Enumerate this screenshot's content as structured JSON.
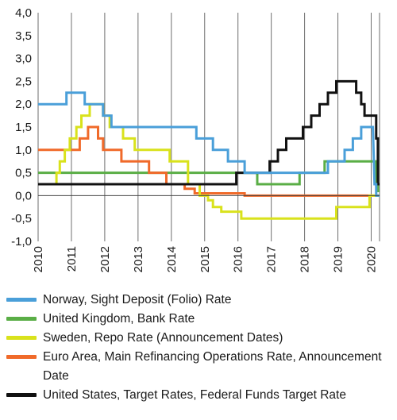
{
  "chart_data": {
    "type": "line",
    "step": true,
    "xlabel": "",
    "ylabel": "",
    "xlim": [
      2010.0,
      2020.25
    ],
    "ylim": [
      -1.0,
      4.0
    ],
    "x_ticks": [
      "2010",
      "2011",
      "2012",
      "2013",
      "2014",
      "2015",
      "2016",
      "2017",
      "2018",
      "2019",
      "2020"
    ],
    "y_ticks": [
      "-1,0",
      "-0,5",
      "0,0",
      "0,5",
      "1,0",
      "1,5",
      "2,0",
      "2,5",
      "3,0",
      "3,5",
      "4,0"
    ],
    "grid": "vertical",
    "legend_position": "bottom",
    "series": [
      {
        "name": "Norway, Sight Deposit (Folio) Rate",
        "color": "#4a9fd9",
        "points": [
          [
            2010.0,
            2.0
          ],
          [
            2010.85,
            2.0
          ],
          [
            2010.85,
            2.25
          ],
          [
            2011.4,
            2.25
          ],
          [
            2011.4,
            2.0
          ],
          [
            2011.95,
            2.0
          ],
          [
            2011.95,
            1.75
          ],
          [
            2012.2,
            1.75
          ],
          [
            2012.2,
            1.5
          ],
          [
            2014.75,
            1.5
          ],
          [
            2014.75,
            1.25
          ],
          [
            2015.25,
            1.25
          ],
          [
            2015.25,
            1.0
          ],
          [
            2015.7,
            1.0
          ],
          [
            2015.7,
            0.75
          ],
          [
            2016.2,
            0.75
          ],
          [
            2016.2,
            0.5
          ],
          [
            2018.7,
            0.5
          ],
          [
            2018.7,
            0.75
          ],
          [
            2019.2,
            0.75
          ],
          [
            2019.2,
            1.0
          ],
          [
            2019.45,
            1.0
          ],
          [
            2019.45,
            1.25
          ],
          [
            2019.7,
            1.25
          ],
          [
            2019.7,
            1.5
          ],
          [
            2020.05,
            1.5
          ],
          [
            2020.1,
            0.25
          ],
          [
            2020.15,
            0.25
          ],
          [
            2020.15,
            0.0
          ],
          [
            2020.25,
            0.0
          ]
        ]
      },
      {
        "name": "United Kingdom, Bank Rate",
        "color": "#5aae46",
        "points": [
          [
            2010.0,
            0.5
          ],
          [
            2016.58,
            0.5
          ],
          [
            2016.58,
            0.25
          ],
          [
            2017.85,
            0.25
          ],
          [
            2017.85,
            0.5
          ],
          [
            2018.6,
            0.5
          ],
          [
            2018.6,
            0.75
          ],
          [
            2020.15,
            0.75
          ],
          [
            2020.15,
            0.25
          ],
          [
            2020.2,
            0.25
          ],
          [
            2020.2,
            0.1
          ],
          [
            2020.25,
            0.1
          ]
        ]
      },
      {
        "name": "Sweden, Repo Rate (Announcement Dates)",
        "color": "#d9e21c",
        "points": [
          [
            2010.0,
            0.25
          ],
          [
            2010.55,
            0.25
          ],
          [
            2010.55,
            0.5
          ],
          [
            2010.65,
            0.5
          ],
          [
            2010.65,
            0.75
          ],
          [
            2010.8,
            0.75
          ],
          [
            2010.8,
            1.0
          ],
          [
            2010.95,
            1.0
          ],
          [
            2010.95,
            1.25
          ],
          [
            2011.15,
            1.25
          ],
          [
            2011.15,
            1.5
          ],
          [
            2011.3,
            1.5
          ],
          [
            2011.3,
            1.75
          ],
          [
            2011.55,
            1.75
          ],
          [
            2011.55,
            2.0
          ],
          [
            2011.95,
            2.0
          ],
          [
            2011.95,
            1.75
          ],
          [
            2012.15,
            1.75
          ],
          [
            2012.15,
            1.5
          ],
          [
            2012.55,
            1.5
          ],
          [
            2012.55,
            1.25
          ],
          [
            2012.9,
            1.25
          ],
          [
            2012.9,
            1.0
          ],
          [
            2013.95,
            1.0
          ],
          [
            2013.95,
            0.75
          ],
          [
            2014.5,
            0.75
          ],
          [
            2014.5,
            0.25
          ],
          [
            2014.85,
            0.25
          ],
          [
            2014.85,
            0.0
          ],
          [
            2015.1,
            0.0
          ],
          [
            2015.1,
            -0.1
          ],
          [
            2015.25,
            -0.1
          ],
          [
            2015.25,
            -0.25
          ],
          [
            2015.5,
            -0.25
          ],
          [
            2015.5,
            -0.35
          ],
          [
            2016.1,
            -0.35
          ],
          [
            2016.1,
            -0.5
          ],
          [
            2018.95,
            -0.5
          ],
          [
            2018.95,
            -0.25
          ],
          [
            2019.95,
            -0.25
          ],
          [
            2019.95,
            0.0
          ],
          [
            2020.25,
            0.0
          ]
        ]
      },
      {
        "name": "Euro Area, Main Refinancing Operations Rate, Announcement Date",
        "color": "#f06a2a",
        "points": [
          [
            2010.0,
            1.0
          ],
          [
            2011.25,
            1.0
          ],
          [
            2011.25,
            1.25
          ],
          [
            2011.5,
            1.25
          ],
          [
            2011.5,
            1.5
          ],
          [
            2011.8,
            1.5
          ],
          [
            2011.8,
            1.25
          ],
          [
            2011.95,
            1.25
          ],
          [
            2011.95,
            1.0
          ],
          [
            2012.5,
            1.0
          ],
          [
            2012.5,
            0.75
          ],
          [
            2013.33,
            0.75
          ],
          [
            2013.33,
            0.5
          ],
          [
            2013.85,
            0.5
          ],
          [
            2013.85,
            0.25
          ],
          [
            2014.4,
            0.25
          ],
          [
            2014.4,
            0.15
          ],
          [
            2014.7,
            0.15
          ],
          [
            2014.7,
            0.05
          ],
          [
            2016.2,
            0.05
          ],
          [
            2016.2,
            0.0
          ],
          [
            2020.25,
            0.0
          ]
        ]
      },
      {
        "name": "United States, Target Rates, Federal Funds Target Rate",
        "color": "#111111",
        "points": [
          [
            2010.0,
            0.25
          ],
          [
            2015.95,
            0.25
          ],
          [
            2015.95,
            0.5
          ],
          [
            2016.95,
            0.5
          ],
          [
            2016.95,
            0.75
          ],
          [
            2017.2,
            0.75
          ],
          [
            2017.2,
            1.0
          ],
          [
            2017.45,
            1.0
          ],
          [
            2017.45,
            1.25
          ],
          [
            2017.95,
            1.25
          ],
          [
            2017.95,
            1.5
          ],
          [
            2018.2,
            1.5
          ],
          [
            2018.2,
            1.75
          ],
          [
            2018.45,
            1.75
          ],
          [
            2018.45,
            2.0
          ],
          [
            2018.7,
            2.0
          ],
          [
            2018.7,
            2.25
          ],
          [
            2018.95,
            2.25
          ],
          [
            2018.95,
            2.5
          ],
          [
            2019.55,
            2.5
          ],
          [
            2019.55,
            2.25
          ],
          [
            2019.7,
            2.25
          ],
          [
            2019.7,
            2.0
          ],
          [
            2019.8,
            2.0
          ],
          [
            2019.8,
            1.75
          ],
          [
            2020.15,
            1.75
          ],
          [
            2020.15,
            1.25
          ],
          [
            2020.2,
            1.25
          ],
          [
            2020.2,
            0.25
          ],
          [
            2020.25,
            0.25
          ]
        ]
      }
    ]
  }
}
